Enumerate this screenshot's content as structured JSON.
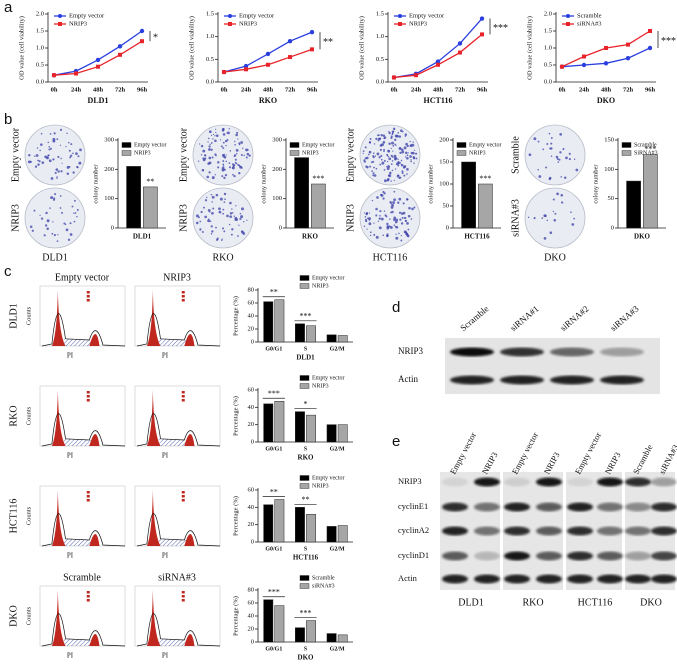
{
  "panel_labels": [
    "a",
    "b",
    "c",
    "d",
    "e"
  ],
  "chart_data": [
    {
      "type": "line",
      "xlabel": "DLD1",
      "ylabel": "OD value (cell viability)",
      "categories": [
        "0h",
        "24h",
        "48h",
        "72h",
        "96h"
      ],
      "series": [
        {
          "name": "Empty vector",
          "color": "#2b3fe0",
          "values": [
            0.2,
            0.32,
            0.65,
            1.05,
            1.5
          ]
        },
        {
          "name": "NRIP3",
          "color": "#e8232a",
          "values": [
            0.2,
            0.25,
            0.45,
            0.8,
            1.2
          ]
        }
      ],
      "ylim": [
        0,
        2
      ],
      "yticks": [
        {
          "value": 0,
          "label": "0.0"
        },
        0.5,
        {
          "value": 1,
          "label": "1.0"
        },
        1.5,
        {
          "value": 2,
          "label": "2.0"
        }
      ],
      "annotation": "*"
    },
    {
      "type": "line",
      "xlabel": "RKO",
      "ylabel": "OD value (cell viability)",
      "categories": [
        "0h",
        "24h",
        "48h",
        "72h",
        "96h"
      ],
      "series": [
        {
          "name": "Empty vector",
          "color": "#2b3fe0",
          "values": [
            0.22,
            0.35,
            0.62,
            0.9,
            1.1
          ]
        },
        {
          "name": "NRIP3",
          "color": "#e8232a",
          "values": [
            0.22,
            0.28,
            0.38,
            0.55,
            0.72
          ]
        }
      ],
      "ylim": [
        0,
        1.5
      ],
      "yticks": [
        {
          "value": 0,
          "label": "0.0"
        },
        0.5,
        {
          "value": 1,
          "label": "1.0"
        },
        1.5
      ],
      "annotation": "**"
    },
    {
      "type": "line",
      "xlabel": "HCT116",
      "ylabel": "OD value (cell viability)",
      "categories": [
        "0h",
        "24h",
        "48h",
        "72h",
        "96h"
      ],
      "series": [
        {
          "name": "Empty vector",
          "color": "#2b3fe0",
          "values": [
            0.1,
            0.18,
            0.45,
            0.85,
            1.4
          ]
        },
        {
          "name": "NRIP3",
          "color": "#e8232a",
          "values": [
            0.1,
            0.15,
            0.38,
            0.65,
            1.05
          ]
        }
      ],
      "ylim": [
        0,
        1.5
      ],
      "yticks": [
        {
          "value": 0,
          "label": "0.0"
        },
        0.5,
        {
          "value": 1,
          "label": "1.0"
        },
        1.5
      ],
      "annotation": "***"
    },
    {
      "type": "line",
      "xlabel": "DKO",
      "ylabel": "OD value (cell viability)",
      "categories": [
        "0h",
        "24h",
        "48h",
        "72h",
        "96h"
      ],
      "series": [
        {
          "name": "Scramble",
          "color": "#2b3fe0",
          "values": [
            0.45,
            0.5,
            0.55,
            0.7,
            1.0
          ]
        },
        {
          "name": "siRNA#3",
          "color": "#e8232a",
          "values": [
            0.45,
            0.75,
            1.0,
            1.1,
            1.5
          ]
        }
      ],
      "ylim": [
        0,
        2
      ],
      "yticks": [
        {
          "value": 0,
          "label": "0.0"
        },
        0.5,
        {
          "value": 1,
          "label": "1.0"
        },
        1.5,
        {
          "value": 2,
          "label": "2.0"
        }
      ],
      "annotation": "***"
    },
    {
      "type": "bar",
      "xlabel": "DLD1",
      "ylabel": "colony number",
      "categories": [
        null
      ],
      "series": [
        {
          "name": "Empty vector",
          "color": "#000000",
          "values": [
            210
          ]
        },
        {
          "name": "NRIP3",
          "color": "#a6a6a6",
          "values": [
            140
          ]
        }
      ],
      "ylim": [
        0,
        300
      ],
      "yticks": [
        0,
        100,
        200,
        300
      ],
      "annotation": "**"
    },
    {
      "type": "bar",
      "xlabel": "RKO",
      "ylabel": "colony number",
      "categories": [
        null
      ],
      "series": [
        {
          "name": "Empty vector",
          "color": "#000000",
          "values": [
            240
          ]
        },
        {
          "name": "NRIP3",
          "color": "#a6a6a6",
          "values": [
            150
          ]
        }
      ],
      "ylim": [
        0,
        300
      ],
      "yticks": [
        0,
        100,
        200,
        300
      ],
      "annotation": "***"
    },
    {
      "type": "bar",
      "xlabel": "HCT116",
      "ylabel": "colony number",
      "categories": [
        null
      ],
      "series": [
        {
          "name": "Empty vector",
          "color": "#000000",
          "values": [
            150
          ]
        },
        {
          "name": "NRIP3",
          "color": "#a6a6a6",
          "values": [
            100
          ]
        }
      ],
      "ylim": [
        0,
        200
      ],
      "yticks": [
        0,
        50,
        100,
        150,
        200
      ],
      "annotation": "***"
    },
    {
      "type": "bar",
      "xlabel": "DKO",
      "ylabel": "colony number",
      "categories": [
        null
      ],
      "series": [
        {
          "name": "Scramble",
          "color": "#000000",
          "values": [
            80
          ]
        },
        {
          "name": "SiRNA#3",
          "color": "#a6a6a6",
          "values": [
            125
          ]
        }
      ],
      "ylim": [
        0,
        150
      ],
      "yticks": [
        0,
        50,
        100,
        150
      ],
      "annotation": "***"
    },
    {
      "type": "bar",
      "xlabel": "DLD1",
      "ylabel": "Percentage (%)",
      "categories": [
        "G0/G1",
        "S",
        "G2/M"
      ],
      "series": [
        {
          "name": "Empty vector",
          "color": "#000000",
          "values": [
            62,
            28,
            11
          ]
        },
        {
          "name": "NRIP3",
          "color": "#a6a6a6",
          "values": [
            65,
            25,
            10
          ]
        }
      ],
      "ylim": [
        0,
        80
      ],
      "yticks": [
        0,
        20,
        40,
        60,
        80
      ],
      "significance": [
        "**",
        "***",
        null
      ]
    },
    {
      "type": "bar",
      "xlabel": "RKO",
      "ylabel": "Percentage (%)",
      "categories": [
        "G0/G1",
        "S",
        "G2/M"
      ],
      "series": [
        {
          "name": "Empty vector",
          "color": "#000000",
          "values": [
            44,
            35,
            20
          ]
        },
        {
          "name": "NRIP3",
          "color": "#a6a6a6",
          "values": [
            47,
            31,
            20
          ]
        }
      ],
      "ylim": [
        0,
        60
      ],
      "yticks": [
        0,
        20,
        40,
        60
      ],
      "significance": [
        "***",
        "*",
        null
      ]
    },
    {
      "type": "bar",
      "xlabel": "HCT116",
      "ylabel": "Percentage (%)",
      "categories": [
        "G0/G1",
        "S",
        "G2/M"
      ],
      "series": [
        {
          "name": "Empty vector",
          "color": "#000000",
          "values": [
            43,
            40,
            18
          ]
        },
        {
          "name": "NRIP3",
          "color": "#a6a6a6",
          "values": [
            49,
            32,
            19
          ]
        }
      ],
      "ylim": [
        0,
        60
      ],
      "yticks": [
        0,
        20,
        40,
        60
      ],
      "significance": [
        "**",
        "**",
        null
      ]
    },
    {
      "type": "bar",
      "xlabel": "DKO",
      "ylabel": "Percentage (%)",
      "categories": [
        "G0/G1",
        "S",
        "G2/M"
      ],
      "series": [
        {
          "name": "Scramble",
          "color": "#000000",
          "values": [
            65,
            22,
            13
          ]
        },
        {
          "name": "siRNA#3",
          "color": "#a6a6a6",
          "values": [
            56,
            33,
            11
          ]
        }
      ],
      "ylim": [
        0,
        80
      ],
      "yticks": [
        0,
        20,
        40,
        60,
        80
      ],
      "significance": [
        "***",
        "***",
        null
      ]
    }
  ],
  "colony": [
    {
      "cell_line": "DLD1",
      "top": "Empty vector",
      "bottom": "NRIP3"
    },
    {
      "cell_line": "RKO",
      "top": "Empty vector",
      "bottom": "NRIP3"
    },
    {
      "cell_line": "HCT116",
      "top": "Empty vector",
      "bottom": "NRIP3"
    },
    {
      "cell_line": "DKO",
      "top": "Scramble",
      "bottom": "siRNA#3"
    }
  ],
  "cell_cycle": {
    "y_axis": "Counts",
    "x_axis": "PI",
    "rows": [
      {
        "cell_line": "DLD1",
        "columns": [
          "Empty vector",
          "NRIP3"
        ]
      },
      {
        "cell_line": "RKO"
      },
      {
        "cell_line": "HCT116"
      },
      {
        "cell_line": "DKO",
        "columns": [
          "Scramble",
          "siRNA#3"
        ]
      }
    ]
  },
  "blot_d": {
    "lanes": [
      "Scramble",
      "siRNA#1",
      "siRNA#2",
      "siRNA#3"
    ],
    "rows": [
      "NRIP3",
      "Actin"
    ]
  },
  "blot_e": {
    "lanes": [
      "Empty vector",
      "NRIP3",
      "Empty vector",
      "NRIP3",
      "Empty vector",
      "NRIP3",
      "Scramble",
      "siRNA#3"
    ],
    "rows": [
      "NRIP3",
      "cyclinE1",
      "cyclinA2",
      "cyclinD1",
      "Actin"
    ],
    "groups": [
      "DLD1",
      "RKO",
      "HCT116",
      "DKO"
    ]
  }
}
